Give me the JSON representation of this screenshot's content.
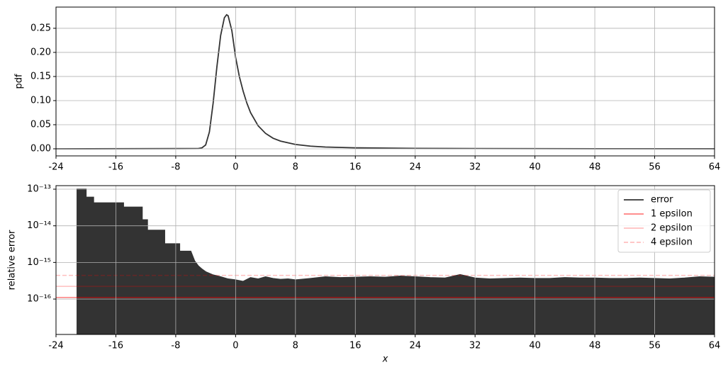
{
  "chart_data": [
    {
      "type": "line",
      "ylabel": "pdf",
      "xlim": [
        -24,
        64
      ],
      "xticks": [
        -24,
        -16,
        -8,
        0,
        8,
        16,
        24,
        32,
        40,
        48,
        56,
        64
      ],
      "ylim": [
        -0.0147,
        0.294
      ],
      "yticks": [
        {
          "value": 0,
          "label": "0.00"
        },
        {
          "value": 0.05,
          "label": "0.05"
        },
        {
          "value": 0.1,
          "label": "0.10"
        },
        {
          "value": 0.15,
          "label": "0.15"
        },
        {
          "value": 0.2,
          "label": "0.20"
        },
        {
          "value": 0.25,
          "label": "0.25"
        }
      ],
      "grid": true,
      "series": [
        {
          "color": "#333333",
          "x": [
            -24,
            -5,
            -4.5,
            -4,
            -3.5,
            -3,
            -2.5,
            -2,
            -1.5,
            -1.2,
            -1,
            -0.5,
            0,
            0.5,
            1,
            1.5,
            2,
            3,
            4,
            5,
            6,
            8,
            10,
            12,
            16,
            24,
            32,
            48,
            64
          ],
          "values": [
            0,
            0.0005,
            0.002,
            0.008,
            0.035,
            0.095,
            0.17,
            0.235,
            0.272,
            0.278,
            0.276,
            0.245,
            0.19,
            0.15,
            0.12,
            0.095,
            0.075,
            0.048,
            0.032,
            0.022,
            0.016,
            0.009,
            0.0055,
            0.0037,
            0.002,
            0.0009,
            0.0005,
            0.0002,
            0.0001
          ]
        }
      ]
    },
    {
      "type": "area",
      "ylabel": "relative error",
      "xlabel": "x",
      "log_y": true,
      "xlim": [
        -24,
        64
      ],
      "xticks": [
        -24,
        -16,
        -8,
        0,
        8,
        16,
        24,
        32,
        40,
        48,
        56,
        64
      ],
      "ylim": [
        1.08e-17,
        1.25e-13
      ],
      "yticks": [
        {
          "value": 1e-16,
          "label": "10⁻¹⁶"
        },
        {
          "value": 1e-15,
          "label": "10⁻¹⁵"
        },
        {
          "value": 1e-14,
          "label": "10⁻¹⁴"
        },
        {
          "value": 1e-13,
          "label": "10⁻¹³"
        }
      ],
      "grid": true,
      "legend": "upper right",
      "series": [
        {
          "name": "error",
          "color": "#333333",
          "x": [
            -21.25,
            -20,
            -20,
            -19,
            -19,
            -15,
            -15,
            -12.5,
            -12.5,
            -11.8,
            -11.8,
            -9.5,
            -9.5,
            -7.5,
            -7.5,
            -6,
            -5.5,
            -5,
            -4.5,
            -4,
            -3,
            -2,
            -1,
            0,
            1,
            2,
            3,
            4,
            5,
            6,
            7,
            8,
            10,
            12,
            14,
            16,
            18,
            20,
            22,
            24,
            26,
            28,
            30,
            32,
            34,
            36,
            38,
            40,
            42,
            44,
            46,
            48,
            50,
            52,
            54,
            56,
            58,
            60,
            62,
            64
          ],
          "values": [
            1e-13,
            1e-13,
            6e-14,
            6e-14,
            4.2e-14,
            4.2e-14,
            3.2e-14,
            3.2e-14,
            1.45e-14,
            1.45e-14,
            7.5e-15,
            7.5e-15,
            3.2e-15,
            3.2e-15,
            2e-15,
            2e-15,
            1.1e-15,
            8e-16,
            6.5e-16,
            5.5e-16,
            4.5e-16,
            4e-16,
            3.5e-16,
            3.3e-16,
            3e-16,
            3.8e-16,
            3.5e-16,
            4e-16,
            3.6e-16,
            3.4e-16,
            3.5e-16,
            3.3e-16,
            3.6e-16,
            4e-16,
            3.8e-16,
            3.9e-16,
            4e-16,
            3.9e-16,
            4.2e-16,
            4e-16,
            3.8e-16,
            3.7e-16,
            4.6e-16,
            3.7e-16,
            3.5e-16,
            3.6e-16,
            3.7e-16,
            3.6e-16,
            3.6e-16,
            3.8e-16,
            3.7e-16,
            3.7e-16,
            3.6e-16,
            3.6e-16,
            3.7e-16,
            3.6e-16,
            3.5e-16,
            3.7e-16,
            4e-16,
            3.9e-16
          ]
        },
        {
          "name": "1 epsilon",
          "color": "rgba(255,0,0,0.5)",
          "value": 1.11e-16,
          "linestyle": "solid"
        },
        {
          "name": "2 epsilon",
          "color": "rgba(255,0,0,0.25)",
          "value": 2.22e-16,
          "linestyle": "solid"
        },
        {
          "name": "4 epsilon",
          "color": "rgba(255,0,0,0.25)",
          "value": 4.44e-16,
          "linestyle": "dashed"
        }
      ]
    }
  ]
}
